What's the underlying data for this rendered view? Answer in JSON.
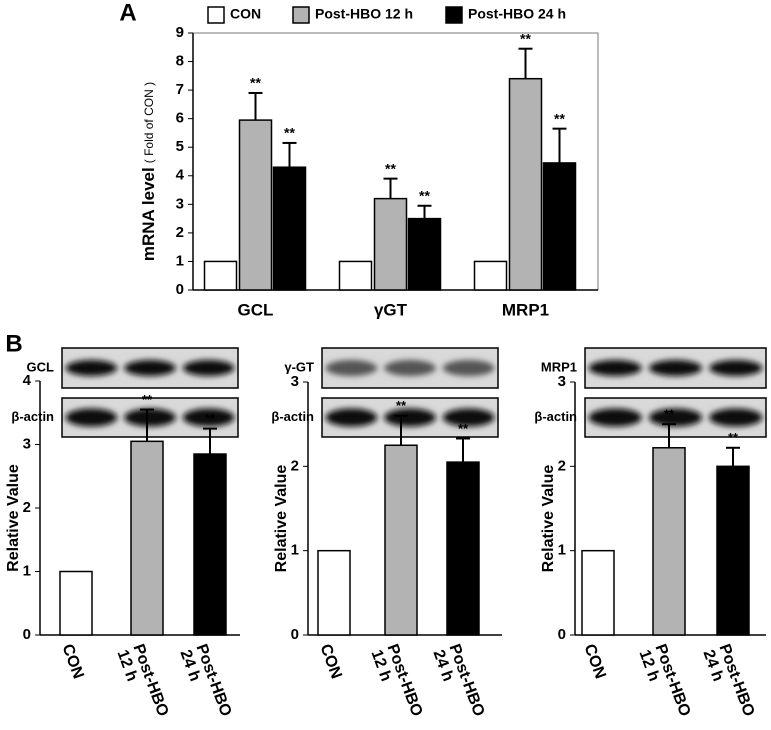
{
  "chart_data": [
    {
      "type": "grouped-bar",
      "panel": "A",
      "ylabel": "mRNA level",
      "ylabel_unit": "( Fold of CON )",
      "categories": [
        "GCL",
        "γGT",
        "MRP1"
      ],
      "ylim": [
        0,
        9
      ],
      "yticks": [
        0,
        1,
        2,
        3,
        4,
        5,
        6,
        7,
        8,
        9
      ],
      "series": [
        {
          "name": "CON",
          "color": "#ffffff",
          "values": [
            1,
            1,
            1
          ]
        },
        {
          "name": "Post-HBO 12 h",
          "color": "#b3b3b3",
          "values": [
            5.95,
            3.2,
            7.4
          ],
          "errors": [
            0.95,
            0.7,
            1.05
          ],
          "significance": [
            "**",
            "**",
            "**"
          ]
        },
        {
          "name": "Post-HBO 24 h",
          "color": "#000000",
          "values": [
            4.3,
            2.5,
            4.45
          ],
          "errors": [
            0.85,
            0.45,
            1.2
          ],
          "significance": [
            "**",
            "**",
            "**"
          ]
        }
      ]
    },
    {
      "type": "bar",
      "panel": "B",
      "blot_labels": [
        "GCL",
        "β-actin"
      ],
      "ylabel": "Relative Value",
      "categories": [
        [
          "CON"
        ],
        [
          "Post-HBO",
          "12 h"
        ],
        [
          "Post-HBO",
          "24 h"
        ]
      ],
      "colors": [
        "#ffffff",
        "#b3b3b3",
        "#000000"
      ],
      "values": [
        1,
        3.05,
        2.85
      ],
      "errors": [
        null,
        0.5,
        0.4
      ],
      "significance": [
        null,
        "**",
        "**"
      ],
      "ylim": [
        0,
        4
      ],
      "yticks": [
        0,
        1,
        2,
        3,
        4
      ]
    },
    {
      "type": "bar",
      "blot_labels": [
        "γ-GT",
        "β-actin"
      ],
      "ylabel": "Relative Value",
      "categories": [
        [
          "CON"
        ],
        [
          "Post-HBO",
          "12 h"
        ],
        [
          "Post-HBO",
          "24 h"
        ]
      ],
      "colors": [
        "#ffffff",
        "#b3b3b3",
        "#000000"
      ],
      "values": [
        1,
        2.25,
        2.05
      ],
      "errors": [
        null,
        0.35,
        0.28
      ],
      "significance": [
        null,
        "**",
        "**"
      ],
      "ylim": [
        0,
        3
      ],
      "yticks": [
        0,
        1,
        2,
        3
      ]
    },
    {
      "type": "bar",
      "blot_labels": [
        "MRP1",
        "β-actin"
      ],
      "ylabel": "Relative Value",
      "categories": [
        [
          "CON"
        ],
        [
          "Post-HBO",
          "12 h"
        ],
        [
          "Post-HBO",
          "24 h"
        ]
      ],
      "colors": [
        "#ffffff",
        "#b3b3b3",
        "#000000"
      ],
      "values": [
        1,
        2.22,
        2.0
      ],
      "errors": [
        null,
        0.28,
        0.22
      ],
      "significance": [
        null,
        "**",
        "**"
      ],
      "ylim": [
        0,
        3
      ],
      "yticks": [
        0,
        1,
        2,
        3
      ]
    }
  ]
}
